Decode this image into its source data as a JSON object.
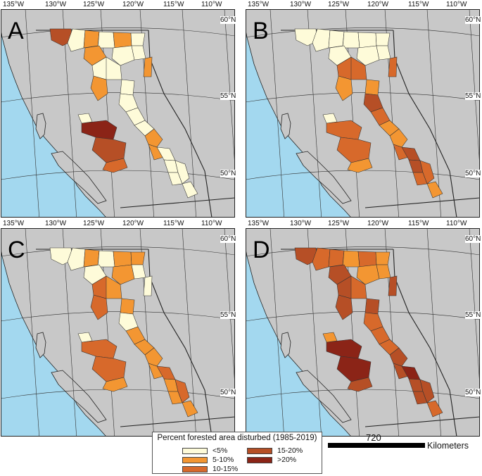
{
  "colors": {
    "ocean": "#a3d8ef",
    "land": "#c8c8c8",
    "border": "#222222",
    "cat1": "#fefbd9",
    "cat2": "#f39632",
    "cat3": "#d7692b",
    "cat4": "#b64f26",
    "cat5": "#8b2417"
  },
  "longitude_labels": [
    "135°W",
    "130°W",
    "125°W",
    "120°W",
    "115°W",
    "110°W"
  ],
  "latitude_labels": [
    "60°N",
    "55°N",
    "50°N"
  ],
  "panels": [
    {
      "label": "A",
      "levels": [
        4,
        1,
        2,
        1,
        2,
        1,
        1,
        1,
        2,
        1,
        1,
        2,
        5,
        4,
        3,
        1,
        1,
        1,
        1,
        2,
        2,
        1,
        1,
        1,
        1,
        1,
        2,
        1
      ]
    },
    {
      "label": "B",
      "levels": [
        1,
        1,
        1,
        1,
        1,
        1,
        1,
        1,
        1,
        3,
        3,
        2,
        3,
        3,
        2,
        2,
        4,
        3,
        2,
        2,
        3,
        4,
        4,
        3,
        3,
        2,
        3,
        1
      ]
    },
    {
      "label": "C",
      "levels": [
        1,
        1,
        2,
        1,
        2,
        2,
        2,
        1,
        1,
        3,
        2,
        3,
        3,
        3,
        2,
        2,
        1,
        2,
        2,
        2,
        2,
        3,
        2,
        2,
        3,
        2,
        1,
        1
      ]
    },
    {
      "label": "D",
      "levels": [
        4,
        3,
        3,
        2,
        3,
        2,
        2,
        2,
        4,
        4,
        3,
        4,
        5,
        5,
        4,
        4,
        3,
        3,
        3,
        4,
        4,
        5,
        4,
        4,
        4,
        3,
        4,
        2
      ]
    }
  ],
  "legend": {
    "title": "Percent forested area disturbed (1985-2019)",
    "items": [
      {
        "label": "<5%",
        "color": "#fefbd9"
      },
      {
        "label": "5-10%",
        "color": "#f39632"
      },
      {
        "label": "10-15%",
        "color": "#d7692b"
      },
      {
        "label": "15-20%",
        "color": "#b64f26"
      },
      {
        "label": ">20%",
        "color": "#8b2417"
      }
    ]
  },
  "scale": {
    "value": "720",
    "unit": "Kilometers"
  }
}
